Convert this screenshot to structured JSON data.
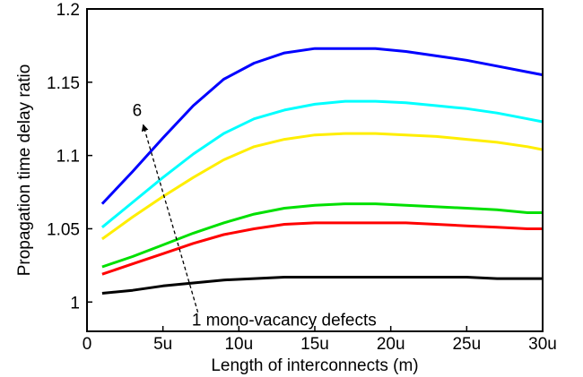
{
  "chart_data": {
    "type": "line",
    "xlabel": "Length of interconnects (m)",
    "ylabel": "Propagation time delay ratio",
    "xlim": [
      0,
      30
    ],
    "ylim": [
      0.98,
      1.2
    ],
    "xticks": [
      0,
      5,
      10,
      15,
      20,
      25,
      30
    ],
    "xtick_labels": [
      "0",
      "5u",
      "10u",
      "15u",
      "20u",
      "25u",
      "30u"
    ],
    "yticks": [
      1,
      1.05,
      1.1,
      1.15,
      1.2
    ],
    "ytick_labels": [
      "1",
      "1.05",
      "1.1",
      "1.15",
      "1.2"
    ],
    "grid": false,
    "legend": "none",
    "series": [
      {
        "color": "#000000",
        "x": [
          1,
          3,
          5,
          7,
          9,
          11,
          13,
          15,
          17,
          19,
          21,
          23,
          25,
          27,
          29,
          30
        ],
        "y": [
          1.006,
          1.008,
          1.011,
          1.013,
          1.015,
          1.016,
          1.017,
          1.017,
          1.017,
          1.017,
          1.017,
          1.017,
          1.017,
          1.016,
          1.016,
          1.016
        ]
      },
      {
        "color": "#ff0000",
        "x": [
          1,
          3,
          5,
          7,
          9,
          11,
          13,
          15,
          17,
          19,
          21,
          23,
          25,
          27,
          29,
          30
        ],
        "y": [
          1.019,
          1.026,
          1.033,
          1.04,
          1.046,
          1.05,
          1.053,
          1.054,
          1.054,
          1.054,
          1.054,
          1.053,
          1.052,
          1.051,
          1.05,
          1.05
        ]
      },
      {
        "color": "#00e000",
        "x": [
          1,
          3,
          5,
          7,
          9,
          11,
          13,
          15,
          17,
          19,
          21,
          23,
          25,
          27,
          29,
          30
        ],
        "y": [
          1.024,
          1.031,
          1.039,
          1.047,
          1.054,
          1.06,
          1.064,
          1.066,
          1.067,
          1.067,
          1.066,
          1.065,
          1.064,
          1.063,
          1.061,
          1.061
        ]
      },
      {
        "color": "#ffee00",
        "x": [
          1,
          3,
          5,
          7,
          9,
          11,
          13,
          15,
          17,
          19,
          21,
          23,
          25,
          27,
          29,
          30
        ],
        "y": [
          1.043,
          1.058,
          1.072,
          1.085,
          1.097,
          1.106,
          1.111,
          1.114,
          1.115,
          1.115,
          1.114,
          1.113,
          1.111,
          1.109,
          1.106,
          1.104
        ]
      },
      {
        "color": "#00ffff",
        "x": [
          1,
          3,
          5,
          7,
          9,
          11,
          13,
          15,
          17,
          19,
          21,
          23,
          25,
          27,
          29,
          30
        ],
        "y": [
          1.051,
          1.068,
          1.085,
          1.101,
          1.115,
          1.125,
          1.131,
          1.135,
          1.137,
          1.137,
          1.136,
          1.134,
          1.132,
          1.129,
          1.125,
          1.123
        ]
      },
      {
        "color": "#0000ff",
        "x": [
          1,
          3,
          5,
          7,
          9,
          11,
          13,
          15,
          17,
          19,
          21,
          23,
          25,
          27,
          29,
          30
        ],
        "y": [
          1.067,
          1.089,
          1.112,
          1.134,
          1.152,
          1.163,
          1.17,
          1.173,
          1.173,
          1.173,
          1.171,
          1.168,
          1.165,
          1.161,
          1.157,
          1.155
        ]
      }
    ],
    "annotations": {
      "top_label": "6",
      "bottom_label": "1 mono-vacancy defects",
      "arrow": {
        "from": [
          7.3,
          0.993
        ],
        "to": [
          3.7,
          1.121
        ]
      }
    }
  }
}
